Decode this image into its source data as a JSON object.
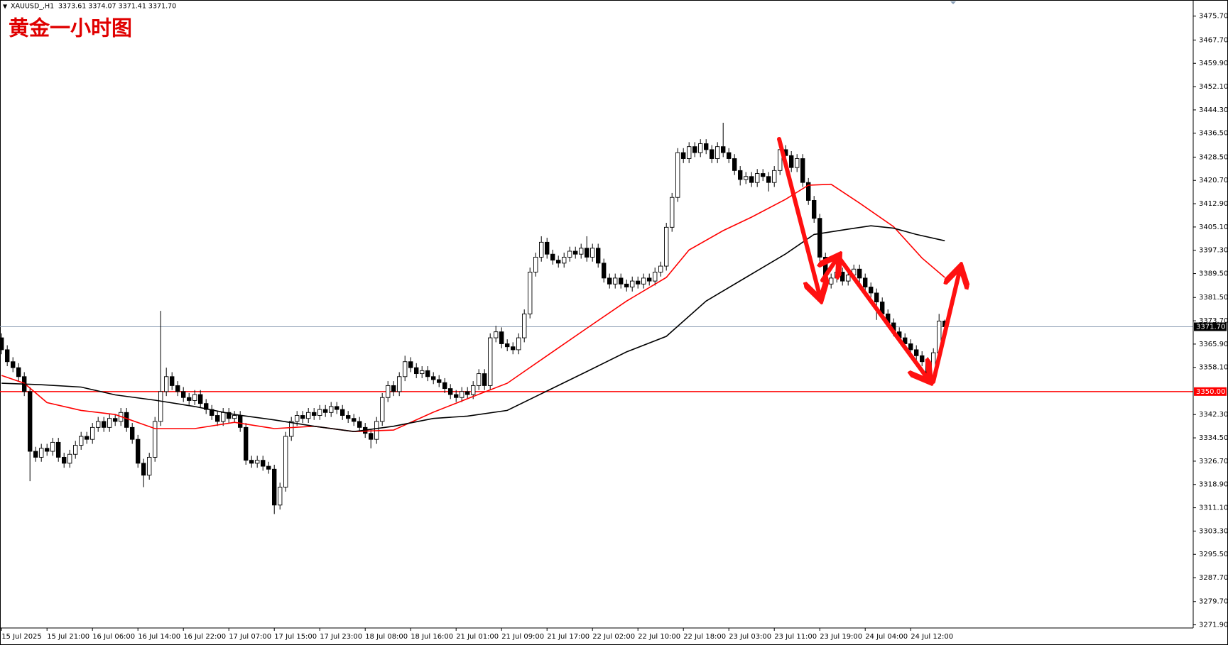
{
  "chart_data": {
    "type": "candlestick",
    "title": "黄金一小时图",
    "symbol": "XAUUSD_,H1",
    "info": "3373.61 3374.07 3371.41 3371.70",
    "categories": [
      "15 Jul 2025",
      null,
      null,
      null,
      null,
      null,
      null,
      null,
      "15 Jul 21:00",
      null,
      null,
      null,
      null,
      null,
      null,
      null,
      "16 Jul 06:00",
      null,
      null,
      null,
      null,
      null,
      null,
      null,
      "16 Jul 14:00",
      null,
      null,
      null,
      null,
      null,
      null,
      null,
      "16 Jul 22:00",
      null,
      null,
      null,
      null,
      null,
      null,
      null,
      "17 Jul 07:00",
      null,
      null,
      null,
      null,
      null,
      null,
      null,
      "17 Jul 15:00",
      null,
      null,
      null,
      null,
      null,
      null,
      null,
      "17 Jul 23:00",
      null,
      null,
      null,
      null,
      null,
      null,
      null,
      "18 Jul 08:00",
      null,
      null,
      null,
      null,
      null,
      null,
      null,
      "18 Jul 16:00",
      null,
      null,
      null,
      null,
      null,
      null,
      null,
      "21 Jul 01:00",
      null,
      null,
      null,
      null,
      null,
      null,
      null,
      "21 Jul 09:00",
      null,
      null,
      null,
      null,
      null,
      null,
      null,
      "21 Jul 17:00",
      null,
      null,
      null,
      null,
      null,
      null,
      null,
      "22 Jul 02:00",
      null,
      null,
      null,
      null,
      null,
      null,
      null,
      "22 Jul 10:00",
      null,
      null,
      null,
      null,
      null,
      null,
      null,
      "22 Jul 18:00",
      null,
      null,
      null,
      null,
      null,
      null,
      null,
      "23 Jul 03:00",
      null,
      null,
      null,
      null,
      null,
      null,
      null,
      "23 Jul 11:00",
      null,
      null,
      null,
      null,
      null,
      null,
      null,
      "23 Jul 19:00",
      null,
      null,
      null,
      null,
      null,
      null,
      null,
      "24 Jul 04:00",
      null,
      null,
      null,
      null,
      null,
      null,
      null,
      "24 Jul 12:00",
      null,
      null,
      null,
      null,
      null,
      null
    ],
    "open": [
      3368,
      3364,
      3360,
      3358,
      3355,
      3350,
      3330,
      3328,
      3331,
      3330,
      3333,
      3328,
      3326,
      3329,
      3332,
      3335,
      3334,
      3338,
      3340,
      3338,
      3341,
      3340,
      3343,
      3338,
      3334,
      3326,
      3322,
      3328,
      3340,
      3350,
      3355,
      3352,
      3350,
      3348,
      3347,
      3349,
      3346,
      3344,
      3342,
      3340,
      3343,
      3341,
      3342,
      3338,
      3327,
      3326,
      3327,
      3325,
      3324,
      3312,
      3318,
      3335,
      3340,
      3342,
      3341,
      3343,
      3342,
      3344,
      3343,
      3345,
      3344,
      3342,
      3341,
      3340,
      3338,
      3336,
      3334,
      3340,
      3348,
      3352,
      3350,
      3355,
      3360,
      3358,
      3356,
      3357,
      3355,
      3354,
      3353,
      3351,
      3349,
      3348,
      3350,
      3349,
      3352,
      3356,
      3352,
      3368,
      3370,
      3366,
      3365,
      3364,
      3368,
      3376,
      3390,
      3395,
      3400,
      3396,
      3394,
      3393,
      3395,
      3397,
      3396,
      3398,
      3395,
      3398,
      3393,
      3388,
      3386,
      3388,
      3386,
      3385,
      3387,
      3386,
      3388,
      3387,
      3390,
      3392,
      3405,
      3415,
      3430,
      3428,
      3432,
      3430,
      3433,
      3431,
      3428,
      3432,
      3430,
      3428,
      3424,
      3421,
      3422,
      3420,
      3423,
      3422,
      3420,
      3424,
      3431,
      3429,
      3425,
      3428,
      3420,
      3414,
      3408,
      3395,
      3386,
      3388,
      3390,
      3387,
      3389,
      3391,
      3388,
      3385,
      3383,
      3380,
      3376,
      3373,
      3370,
      3368,
      3366,
      3364,
      3362,
      3360,
      3355,
      3363,
      3373.61
    ],
    "high": [
      3369.5,
      3365.5,
      3361.5,
      3359.5,
      3356.5,
      3351.5,
      3331.5,
      3332.5,
      3332.5,
      3334.5,
      3334.5,
      3329.5,
      3330.5,
      3333.5,
      3336.5,
      3336.5,
      3339.5,
      3341.5,
      3341.5,
      3342.5,
      3342.5,
      3344.5,
      3344.5,
      3339.5,
      3335.5,
      3327.5,
      3329.5,
      3341.5,
      3377,
      3358,
      3356.5,
      3353.5,
      3351.5,
      3349.5,
      3350.5,
      3350.5,
      3347.5,
      3345.5,
      3343.5,
      3344.5,
      3344.5,
      3343.5,
      3343.5,
      3339.5,
      3328.5,
      3328.5,
      3328.5,
      3326.5,
      3325.5,
      3319.5,
      3336.5,
      3341.5,
      3343.5,
      3343.5,
      3344.5,
      3344.5,
      3345.5,
      3345.5,
      3346.5,
      3346.5,
      3345.5,
      3343.5,
      3342.5,
      3341.5,
      3339.5,
      3337.5,
      3341.5,
      3349.5,
      3353.5,
      3353.5,
      3356.5,
      3362,
      3361.5,
      3359.5,
      3358.5,
      3358.5,
      3356.5,
      3355.5,
      3354.5,
      3352.5,
      3350.5,
      3351.5,
      3351.5,
      3353.5,
      3357.5,
      3357.5,
      3369.5,
      3372,
      3371.5,
      3367.5,
      3366.5,
      3369.5,
      3377.5,
      3391.5,
      3396.5,
      3402,
      3401.5,
      3397.5,
      3395.5,
      3396.5,
      3398.5,
      3398.5,
      3399.5,
      3402,
      3399.5,
      3399.5,
      3394.5,
      3389.5,
      3389.5,
      3389.5,
      3387.5,
      3388.5,
      3388.5,
      3389.5,
      3389.5,
      3391.5,
      3393.5,
      3406.5,
      3416.5,
      3431.5,
      3431.5,
      3433.5,
      3433.5,
      3434.5,
      3434.5,
      3432.5,
      3433.5,
      3440,
      3431.5,
      3429.5,
      3425.5,
      3423.5,
      3423.5,
      3424.5,
      3424.5,
      3423.5,
      3425.5,
      3432.5,
      3432.5,
      3430.5,
      3429.5,
      3429.5,
      3421.5,
      3415.5,
      3409.5,
      3396.5,
      3389.5,
      3391.5,
      3391.5,
      3390.5,
      3392.5,
      3392.5,
      3389.5,
      3386.5,
      3384.5,
      3381.5,
      3377.5,
      3374.5,
      3371.5,
      3369.5,
      3367.5,
      3365.5,
      3363.5,
      3361.5,
      3364.5,
      3376,
      3374.07
    ],
    "low": [
      3362.5,
      3358.5,
      3356.5,
      3353.5,
      3348.5,
      3320,
      3326.5,
      3326.5,
      3328.5,
      3328.5,
      3326.5,
      3324.5,
      3324.5,
      3327.5,
      3330.5,
      3332.5,
      3332.5,
      3336.5,
      3336.5,
      3336.5,
      3338.5,
      3338.5,
      3336.5,
      3332.5,
      3324.5,
      3318,
      3320.5,
      3326.5,
      3338.5,
      3348.5,
      3350.5,
      3348.5,
      3346.5,
      3345.5,
      3345.5,
      3344.5,
      3342.5,
      3340.5,
      3338.5,
      3338.5,
      3339.5,
      3339.5,
      3336.5,
      3325.5,
      3324.5,
      3324.5,
      3323.5,
      3322.5,
      3309,
      3310.5,
      3316.5,
      3333.5,
      3338.5,
      3339.5,
      3339.5,
      3340.5,
      3340.5,
      3341.5,
      3341.5,
      3342.5,
      3340.5,
      3339.5,
      3338.5,
      3336.5,
      3334.5,
      3331,
      3332.5,
      3338.5,
      3346.5,
      3348.5,
      3348.5,
      3353.5,
      3356.5,
      3354.5,
      3354.5,
      3353.5,
      3352.5,
      3351.5,
      3349.5,
      3347.5,
      3346.5,
      3346.5,
      3347.5,
      3347.5,
      3350.5,
      3350.5,
      3350.5,
      3366.5,
      3364.5,
      3363.5,
      3362.5,
      3362.5,
      3366.5,
      3374.5,
      3388.5,
      3393.5,
      3394.5,
      3392.5,
      3391.5,
      3391.5,
      3393.5,
      3394.5,
      3394.5,
      3393.5,
      3393.5,
      3391.5,
      3386.5,
      3384.5,
      3384.5,
      3384.5,
      3383.5,
      3383.5,
      3384.5,
      3384.5,
      3385.5,
      3385.5,
      3388.5,
      3390.5,
      3403.5,
      3413.5,
      3426.5,
      3426.5,
      3428.5,
      3428.5,
      3429.5,
      3426.5,
      3426.5,
      3428.5,
      3426.5,
      3422.5,
      3419,
      3419.5,
      3418.5,
      3418.5,
      3420.5,
      3417,
      3418.5,
      3422.5,
      3427.5,
      3423.5,
      3423.5,
      3418.5,
      3412.5,
      3406.5,
      3393.5,
      3384.5,
      3384.5,
      3386.5,
      3385.5,
      3385.5,
      3387.5,
      3386.5,
      3383.5,
      3381.5,
      3374,
      3374.5,
      3371.5,
      3368.5,
      3366.5,
      3364.5,
      3362.5,
      3360.5,
      3358.5,
      3353,
      3353.5,
      3361.5,
      3371.41
    ],
    "close": [
      3364,
      3360,
      3358,
      3355,
      3350,
      3330,
      3328,
      3331,
      3330,
      3333,
      3328,
      3326,
      3329,
      3332,
      3335,
      3334,
      3338,
      3340,
      3338,
      3341,
      3340,
      3343,
      3338,
      3334,
      3326,
      3322,
      3328,
      3340,
      3350,
      3355,
      3352,
      3350,
      3348,
      3347,
      3349,
      3346,
      3344,
      3342,
      3340,
      3343,
      3341,
      3342,
      3338,
      3327,
      3326,
      3327,
      3325,
      3324,
      3312,
      3318,
      3335,
      3340,
      3342,
      3341,
      3343,
      3342,
      3344,
      3343,
      3345,
      3344,
      3342,
      3341,
      3340,
      3338,
      3336,
      3334,
      3340,
      3348,
      3352,
      3350,
      3355,
      3360,
      3358,
      3356,
      3357,
      3355,
      3354,
      3353,
      3351,
      3349,
      3348,
      3350,
      3349,
      3352,
      3356,
      3352,
      3368,
      3370,
      3366,
      3365,
      3364,
      3368,
      3376,
      3390,
      3395,
      3400,
      3396,
      3394,
      3393,
      3395,
      3397,
      3396,
      3398,
      3395,
      3398,
      3393,
      3388,
      3386,
      3388,
      3386,
      3385,
      3387,
      3386,
      3388,
      3387,
      3390,
      3392,
      3405,
      3415,
      3430,
      3428,
      3432,
      3430,
      3433,
      3431,
      3428,
      3432,
      3430,
      3428,
      3424,
      3421,
      3422,
      3420,
      3423,
      3422,
      3420,
      3424,
      3431,
      3429,
      3425,
      3428,
      3420,
      3414,
      3408,
      3395,
      3386,
      3388,
      3390,
      3387,
      3389,
      3391,
      3388,
      3385,
      3383,
      3380,
      3376,
      3373,
      3370,
      3368,
      3366,
      3364,
      3362,
      3360,
      3355,
      3363,
      3373.6,
      3371.7
    ],
    "series": [
      {
        "color": "#ff0000",
        "x": [
          0,
          4,
          8,
          14,
          20,
          27,
          34,
          41,
          48,
          55,
          62,
          69,
          76,
          82,
          89,
          96,
          103,
          110,
          117,
          121,
          127,
          132,
          138,
          142,
          146,
          151,
          157,
          162,
          166
        ],
        "values": [
          3355.4,
          3352.8,
          3346.3,
          3343.7,
          3342.3,
          3337.6,
          3337.6,
          3339.7,
          3337.6,
          3338.4,
          3336.6,
          3337.1,
          3343.1,
          3347.6,
          3352.8,
          3362.0,
          3371.2,
          3380.3,
          3388.2,
          3397.4,
          3403.9,
          3408.4,
          3414.4,
          3419.1,
          3419.4,
          3413.1,
          3405.2,
          3394.7,
          3388.2
        ]
      },
      {
        "color": "#000000",
        "x": [
          0,
          7,
          14,
          20,
          27,
          34,
          41,
          48,
          55,
          62,
          69,
          76,
          82,
          89,
          96,
          103,
          110,
          117,
          124,
          131,
          138,
          143,
          149,
          153,
          157,
          161,
          166
        ],
        "values": [
          3352.8,
          3352.3,
          3351.5,
          3348.9,
          3347.1,
          3345.0,
          3342.3,
          3340.5,
          3338.4,
          3336.6,
          3338.4,
          3341.0,
          3341.8,
          3343.7,
          3350.2,
          3356.7,
          3363.3,
          3368.5,
          3380.3,
          3388.2,
          3396.1,
          3402.6,
          3404.4,
          3405.5,
          3404.7,
          3402.6,
          3400.5
        ]
      }
    ],
    "current_price": {
      "value": 3371.7,
      "label": "3371.70"
    },
    "hline": {
      "value": 3350,
      "label": "3350.00",
      "color": "#ff0000"
    },
    "ylim": [
      3270.85,
      3480.15
    ],
    "yticks": [
      {
        "value": 3475.7,
        "label": "3475.70"
      },
      {
        "value": 3467.7,
        "label": "3467.70"
      },
      {
        "value": 3459.9,
        "label": "3459.90"
      },
      {
        "value": 3452.1,
        "label": "3452.10"
      },
      {
        "value": 3444.3,
        "label": "3444.30"
      },
      {
        "value": 3436.5,
        "label": "3436.50"
      },
      {
        "value": 3428.5,
        "label": "3428.50"
      },
      {
        "value": 3420.7,
        "label": "3420.70"
      },
      {
        "value": 3412.9,
        "label": "3412.90"
      },
      {
        "value": 3405.1,
        "label": "3405.10"
      },
      {
        "value": 3397.3,
        "label": "3397.30"
      },
      {
        "value": 3389.5,
        "label": "3389.50"
      },
      {
        "value": 3381.5,
        "label": "3381.50"
      },
      {
        "value": 3373.7,
        "label": "3373.70"
      },
      {
        "value": 3365.9,
        "label": "3365.90"
      },
      {
        "value": 3358.1,
        "label": "3358.10"
      },
      {
        "value": 3342.3,
        "label": "3342.30"
      },
      {
        "value": 3334.5,
        "label": "3334.50"
      },
      {
        "value": 3326.7,
        "label": "3326.70"
      },
      {
        "value": 3318.9,
        "label": "3318.90"
      },
      {
        "value": 3311.1,
        "label": "3311.10"
      },
      {
        "value": 3303.3,
        "label": "3303.30"
      },
      {
        "value": 3295.5,
        "label": "3295.50"
      },
      {
        "value": 3287.7,
        "label": "3287.70"
      },
      {
        "value": 3279.7,
        "label": "3279.70"
      },
      {
        "value": 3271.9,
        "label": "3271.90"
      }
    ],
    "grid": false
  }
}
